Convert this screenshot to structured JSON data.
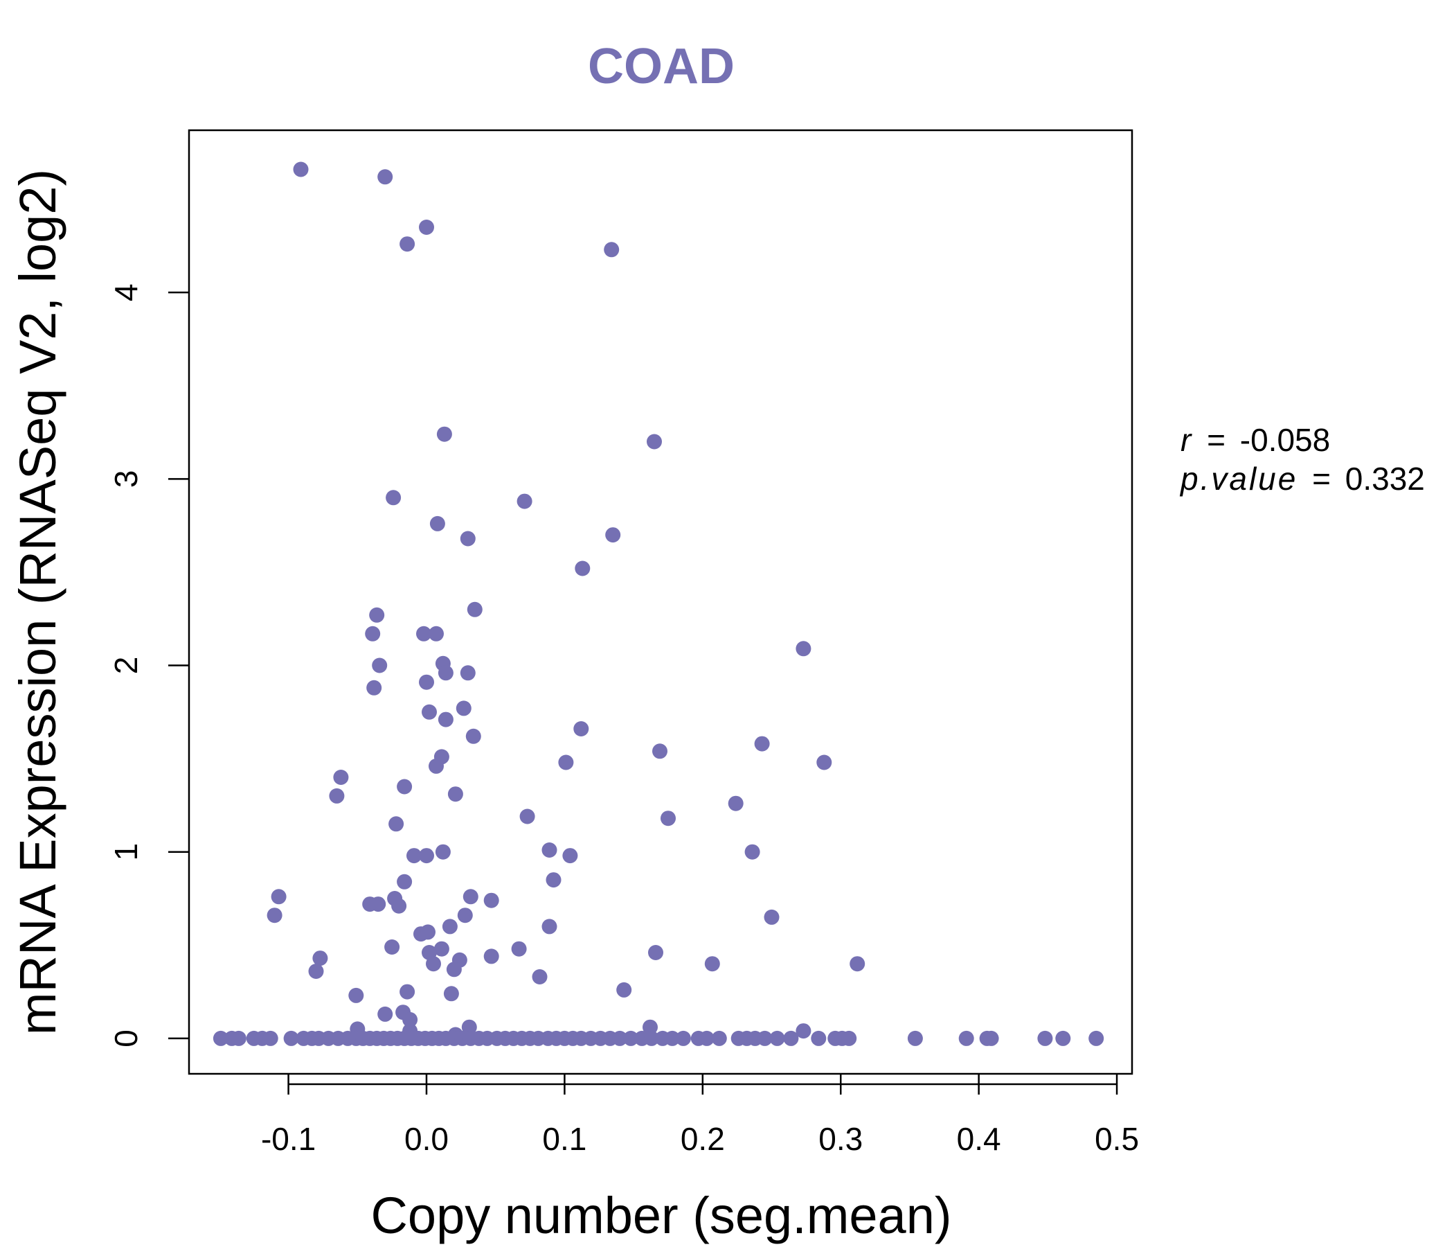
{
  "colors": {
    "accent": "#7570B3",
    "axis": "#000000",
    "background": "#FFFFFF"
  },
  "stats": {
    "r_label": "r",
    "r_value": "-0.058",
    "p_label": "p.value",
    "p_value": "0.332",
    "eq": "="
  },
  "chart_data": {
    "type": "scatter",
    "title": "COAD",
    "xlabel": "Copy number (seg.mean)",
    "ylabel": "mRNA Expression (RNASeq V2, log2)",
    "xlim": [
      -0.172,
      0.511
    ],
    "ylim": [
      -0.19,
      4.87
    ],
    "xticks": [
      -0.1,
      0.0,
      0.1,
      0.2,
      0.3,
      0.4,
      0.5
    ],
    "xtick_labels": [
      "-0.1",
      "0.0",
      "0.1",
      "0.2",
      "0.3",
      "0.4",
      "0.5"
    ],
    "yticks": [
      0,
      1,
      2,
      3,
      4
    ],
    "ytick_labels": [
      "0",
      "1",
      "2",
      "3",
      "4"
    ],
    "grid": false,
    "points": [
      [
        -0.091,
        4.66
      ],
      [
        -0.03,
        4.62
      ],
      [
        0.0,
        4.35
      ],
      [
        -0.014,
        4.26
      ],
      [
        0.134,
        4.23
      ],
      [
        0.013,
        3.24
      ],
      [
        0.165,
        3.2
      ],
      [
        -0.024,
        2.9
      ],
      [
        0.071,
        2.88
      ],
      [
        0.008,
        2.76
      ],
      [
        0.03,
        2.68
      ],
      [
        0.135,
        2.7
      ],
      [
        0.113,
        2.52
      ],
      [
        0.035,
        2.3
      ],
      [
        -0.036,
        2.27
      ],
      [
        -0.039,
        2.17
      ],
      [
        -0.002,
        2.17
      ],
      [
        0.007,
        2.17
      ],
      [
        0.273,
        2.09
      ],
      [
        -0.034,
        2.0
      ],
      [
        0.012,
        2.01
      ],
      [
        0.014,
        1.96
      ],
      [
        0.03,
        1.96
      ],
      [
        0.0,
        1.91
      ],
      [
        -0.038,
        1.88
      ],
      [
        0.027,
        1.77
      ],
      [
        0.002,
        1.75
      ],
      [
        0.014,
        1.71
      ],
      [
        0.112,
        1.66
      ],
      [
        0.034,
        1.62
      ],
      [
        0.243,
        1.58
      ],
      [
        0.169,
        1.54
      ],
      [
        0.011,
        1.51
      ],
      [
        0.101,
        1.48
      ],
      [
        0.288,
        1.48
      ],
      [
        0.007,
        1.46
      ],
      [
        -0.062,
        1.4
      ],
      [
        -0.016,
        1.35
      ],
      [
        -0.065,
        1.3
      ],
      [
        0.021,
        1.31
      ],
      [
        0.224,
        1.26
      ],
      [
        0.073,
        1.19
      ],
      [
        0.175,
        1.18
      ],
      [
        -0.022,
        1.15
      ],
      [
        0.089,
        1.01
      ],
      [
        0.012,
        1.0
      ],
      [
        0.236,
        1.0
      ],
      [
        -0.009,
        0.98
      ],
      [
        0.0,
        0.98
      ],
      [
        0.104,
        0.98
      ],
      [
        0.092,
        0.85
      ],
      [
        -0.016,
        0.84
      ],
      [
        -0.107,
        0.76
      ],
      [
        0.032,
        0.76
      ],
      [
        -0.023,
        0.75
      ],
      [
        -0.041,
        0.72
      ],
      [
        -0.035,
        0.72
      ],
      [
        -0.02,
        0.71
      ],
      [
        0.047,
        0.74
      ],
      [
        -0.11,
        0.66
      ],
      [
        0.028,
        0.66
      ],
      [
        0.25,
        0.65
      ],
      [
        0.089,
        0.6
      ],
      [
        0.017,
        0.6
      ],
      [
        -0.004,
        0.56
      ],
      [
        0.001,
        0.57
      ],
      [
        -0.025,
        0.49
      ],
      [
        0.011,
        0.48
      ],
      [
        0.002,
        0.46
      ],
      [
        0.067,
        0.48
      ],
      [
        0.166,
        0.46
      ],
      [
        -0.077,
        0.43
      ],
      [
        0.047,
        0.44
      ],
      [
        0.024,
        0.42
      ],
      [
        0.005,
        0.4
      ],
      [
        0.207,
        0.4
      ],
      [
        0.312,
        0.4
      ],
      [
        -0.08,
        0.36
      ],
      [
        0.02,
        0.37
      ],
      [
        0.082,
        0.33
      ],
      [
        0.143,
        0.26
      ],
      [
        -0.014,
        0.25
      ],
      [
        0.018,
        0.24
      ],
      [
        -0.051,
        0.23
      ],
      [
        -0.017,
        0.14
      ],
      [
        -0.03,
        0.13
      ],
      [
        -0.012,
        0.1
      ],
      [
        0.162,
        0.06
      ],
      [
        0.031,
        0.06
      ],
      [
        -0.05,
        0.05
      ],
      [
        -0.012,
        0.04
      ],
      [
        0.273,
        0.04
      ],
      [
        0.021,
        0.02
      ],
      [
        -0.149,
        0.0
      ],
      [
        -0.141,
        0.0
      ],
      [
        -0.136,
        0.0
      ],
      [
        -0.125,
        0.0
      ],
      [
        -0.119,
        0.0
      ],
      [
        -0.113,
        0.0
      ],
      [
        -0.098,
        0.0
      ],
      [
        -0.089,
        0.0
      ],
      [
        -0.083,
        0.0
      ],
      [
        -0.078,
        0.0
      ],
      [
        -0.071,
        0.0
      ],
      [
        -0.064,
        0.0
      ],
      [
        -0.057,
        0.0
      ],
      [
        -0.051,
        0.0
      ],
      [
        -0.046,
        0.0
      ],
      [
        -0.041,
        0.0
      ],
      [
        -0.036,
        0.0
      ],
      [
        -0.031,
        0.0
      ],
      [
        -0.026,
        0.0
      ],
      [
        -0.021,
        0.0
      ],
      [
        -0.016,
        0.0
      ],
      [
        -0.011,
        0.0
      ],
      [
        -0.006,
        0.0
      ],
      [
        -0.001,
        0.0
      ],
      [
        0.004,
        0.0
      ],
      [
        0.009,
        0.0
      ],
      [
        0.014,
        0.0
      ],
      [
        0.02,
        0.0
      ],
      [
        0.026,
        0.0
      ],
      [
        0.032,
        0.0
      ],
      [
        0.038,
        0.0
      ],
      [
        0.044,
        0.0
      ],
      [
        0.051,
        0.0
      ],
      [
        0.057,
        0.0
      ],
      [
        0.063,
        0.0
      ],
      [
        0.069,
        0.0
      ],
      [
        0.075,
        0.0
      ],
      [
        0.081,
        0.0
      ],
      [
        0.088,
        0.0
      ],
      [
        0.094,
        0.0
      ],
      [
        0.1,
        0.0
      ],
      [
        0.106,
        0.0
      ],
      [
        0.112,
        0.0
      ],
      [
        0.119,
        0.0
      ],
      [
        0.126,
        0.0
      ],
      [
        0.133,
        0.0
      ],
      [
        0.14,
        0.0
      ],
      [
        0.148,
        0.0
      ],
      [
        0.156,
        0.0
      ],
      [
        0.163,
        0.0
      ],
      [
        0.171,
        0.0
      ],
      [
        0.178,
        0.0
      ],
      [
        0.186,
        0.0
      ],
      [
        0.197,
        0.0
      ],
      [
        0.203,
        0.0
      ],
      [
        0.212,
        0.0
      ],
      [
        0.226,
        0.0
      ],
      [
        0.232,
        0.0
      ],
      [
        0.238,
        0.0
      ],
      [
        0.245,
        0.0
      ],
      [
        0.254,
        0.0
      ],
      [
        0.264,
        0.0
      ],
      [
        0.284,
        0.0
      ],
      [
        0.296,
        0.0
      ],
      [
        0.301,
        0.0
      ],
      [
        0.306,
        0.0
      ],
      [
        0.354,
        0.0
      ],
      [
        0.391,
        0.0
      ],
      [
        0.406,
        0.0
      ],
      [
        0.409,
        0.0
      ],
      [
        0.448,
        0.0
      ],
      [
        0.461,
        0.0
      ],
      [
        0.485,
        0.0
      ]
    ]
  }
}
